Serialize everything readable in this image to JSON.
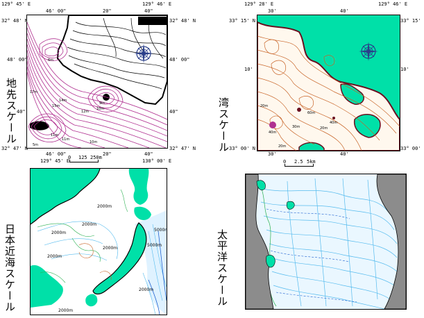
{
  "panels": {
    "local": {
      "label": "地先スケール",
      "top_left": "129° 45' E",
      "top_right": "129° 46' E",
      "top_tick_1": "46' 00\"",
      "top_tick_2": "20\"",
      "top_tick_3": "40\"",
      "left_top": "32° 48' N",
      "left_mid": "48' 00\"",
      "left_low": "40\"",
      "left_bottom": "32° 47' N",
      "right_top": "32° 48' N",
      "right_mid": "48' 00\"",
      "right_low": "40\"",
      "right_bottom": "32° 47' N",
      "bottom_tick_1": "46' 00\"",
      "bottom_tick_2": "20\"",
      "bottom_tick_3": "40\"",
      "scale_0": "0",
      "scale_mid": "125",
      "scale_end": "250m",
      "depth_labels": [
        "6m",
        "17m",
        "14m",
        "15m",
        "12m",
        "10m",
        "9m",
        "11m",
        "10m",
        "11m",
        "5m"
      ]
    },
    "bay": {
      "label": "湾スケール",
      "top_left": "129° 28' E",
      "top_right": "129° 46' E",
      "top_tick_1": "30'",
      "top_tick_2": "40'",
      "left_top": "33° 15' N",
      "left_mid": "10'",
      "left_bottom": "33° 00' N",
      "right_top": "33° 15' N",
      "right_mid": "10'",
      "right_bottom": "33° 00' N",
      "bottom_tick_1": "30'",
      "bottom_tick_2": "40'",
      "scale_0": "0",
      "scale_mid": "2.5",
      "scale_end": "5km",
      "depth_labels": [
        "20m",
        "40m",
        "20m",
        "30m",
        "60m",
        "20m",
        "40m"
      ]
    },
    "japan": {
      "label": "日本近海スケール",
      "top_left": "129° 45' E",
      "top_right": "130° 00' E",
      "contour_labels": [
        "2000m",
        "2000m",
        "2000m",
        "2000m",
        "2000m",
        "5000m",
        "5000m",
        "2000m",
        "2000m"
      ]
    },
    "pacific": {
      "label": "太平洋スケール"
    }
  },
  "colors": {
    "land": "#00e0a8",
    "contour_magenta": "#b03090",
    "contour_brown": "#c86428",
    "sea_bg": "#ffffff",
    "ocean_blue": "#55bbee",
    "deep_blue": "#1e60d0",
    "shallow_green": "#2ab050",
    "grey_land": "#8c8c8c"
  },
  "icons": [
    "compass-rose-icon"
  ]
}
